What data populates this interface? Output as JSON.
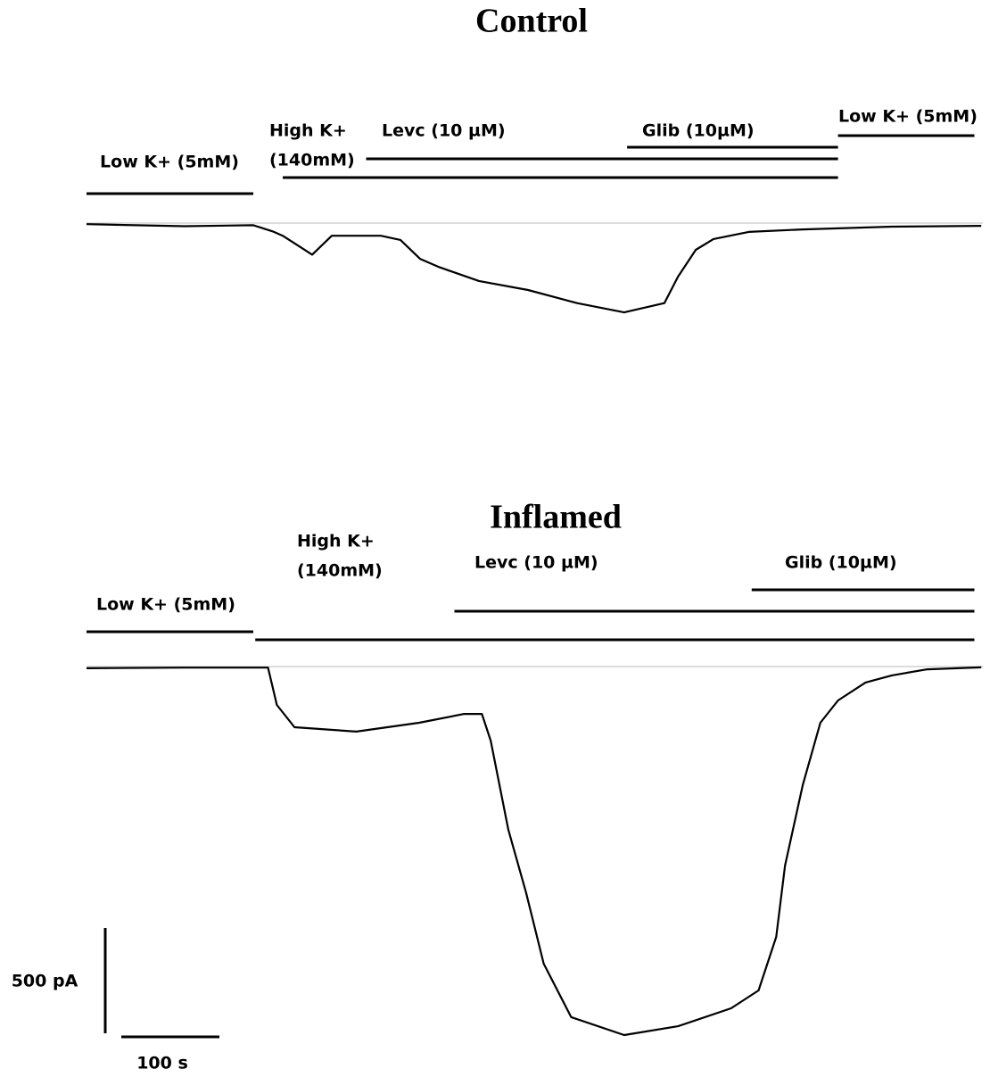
{
  "chart_data": [
    {
      "type": "line",
      "title": "Control",
      "x": [
        0,
        50,
        100,
        170,
        190,
        200,
        220,
        230,
        250,
        300,
        320,
        340,
        360,
        400,
        450,
        500,
        548,
        589,
        603,
        621,
        639,
        675,
        730,
        821,
        912
      ],
      "values": [
        -5,
        -10,
        -15,
        -10,
        -40,
        -60,
        -120,
        -150,
        -60,
        -60,
        -80,
        -170,
        -210,
        -275,
        -318,
        -380,
        -424,
        -380,
        -254,
        -127,
        -76,
        -42,
        -30,
        -17,
        -13
      ],
      "color": "#000000",
      "solutions": [
        {
          "label": [
            "Low K+ (5mM)"
          ],
          "start": 0,
          "end": 170
        },
        {
          "label": [
            "High K+",
            "(140mM)"
          ],
          "start": 200,
          "end": 766
        },
        {
          "label": [
            "Levc (10 µM)"
          ],
          "start": 285,
          "end": 766
        },
        {
          "label": [
            "Glib (10µM)"
          ],
          "start": 551,
          "end": 766
        },
        {
          "label": [
            "Low K+ (5mM)"
          ],
          "start": 766,
          "end": 905
        }
      ]
    },
    {
      "type": "line",
      "title": "Inflamed",
      "x": [
        0,
        100,
        185,
        194,
        212,
        275,
        339,
        385,
        403,
        412,
        430,
        448,
        466,
        494,
        548,
        603,
        657,
        685,
        703,
        712,
        730,
        748,
        766,
        794,
        821,
        857,
        912
      ],
      "values": [
        -8,
        -5,
        -5,
        -182,
        -288,
        -309,
        -267,
        -225,
        -225,
        -352,
        -776,
        -1073,
        -1411,
        -1665,
        -1750,
        -1708,
        -1623,
        -1538,
        -1284,
        -945,
        -564,
        -267,
        -161,
        -76,
        -42,
        -13,
        -4
      ],
      "color": "#000000",
      "solutions": [
        {
          "label": [
            "Low K+ (5mM)"
          ],
          "start": 0,
          "end": 170
        },
        {
          "label": [
            "High K+",
            "(140mM)"
          ],
          "start": 172,
          "end": 905
        },
        {
          "label": [
            "Levc (10 µM)"
          ],
          "start": 375,
          "end": 905
        },
        {
          "label": [
            "Glib (10µM)"
          ],
          "start": 678,
          "end": 905
        }
      ],
      "scale_bars": {
        "y": {
          "value": 500,
          "label": "500 pA"
        },
        "x": {
          "value": 100,
          "label": "100 s"
        }
      }
    }
  ]
}
